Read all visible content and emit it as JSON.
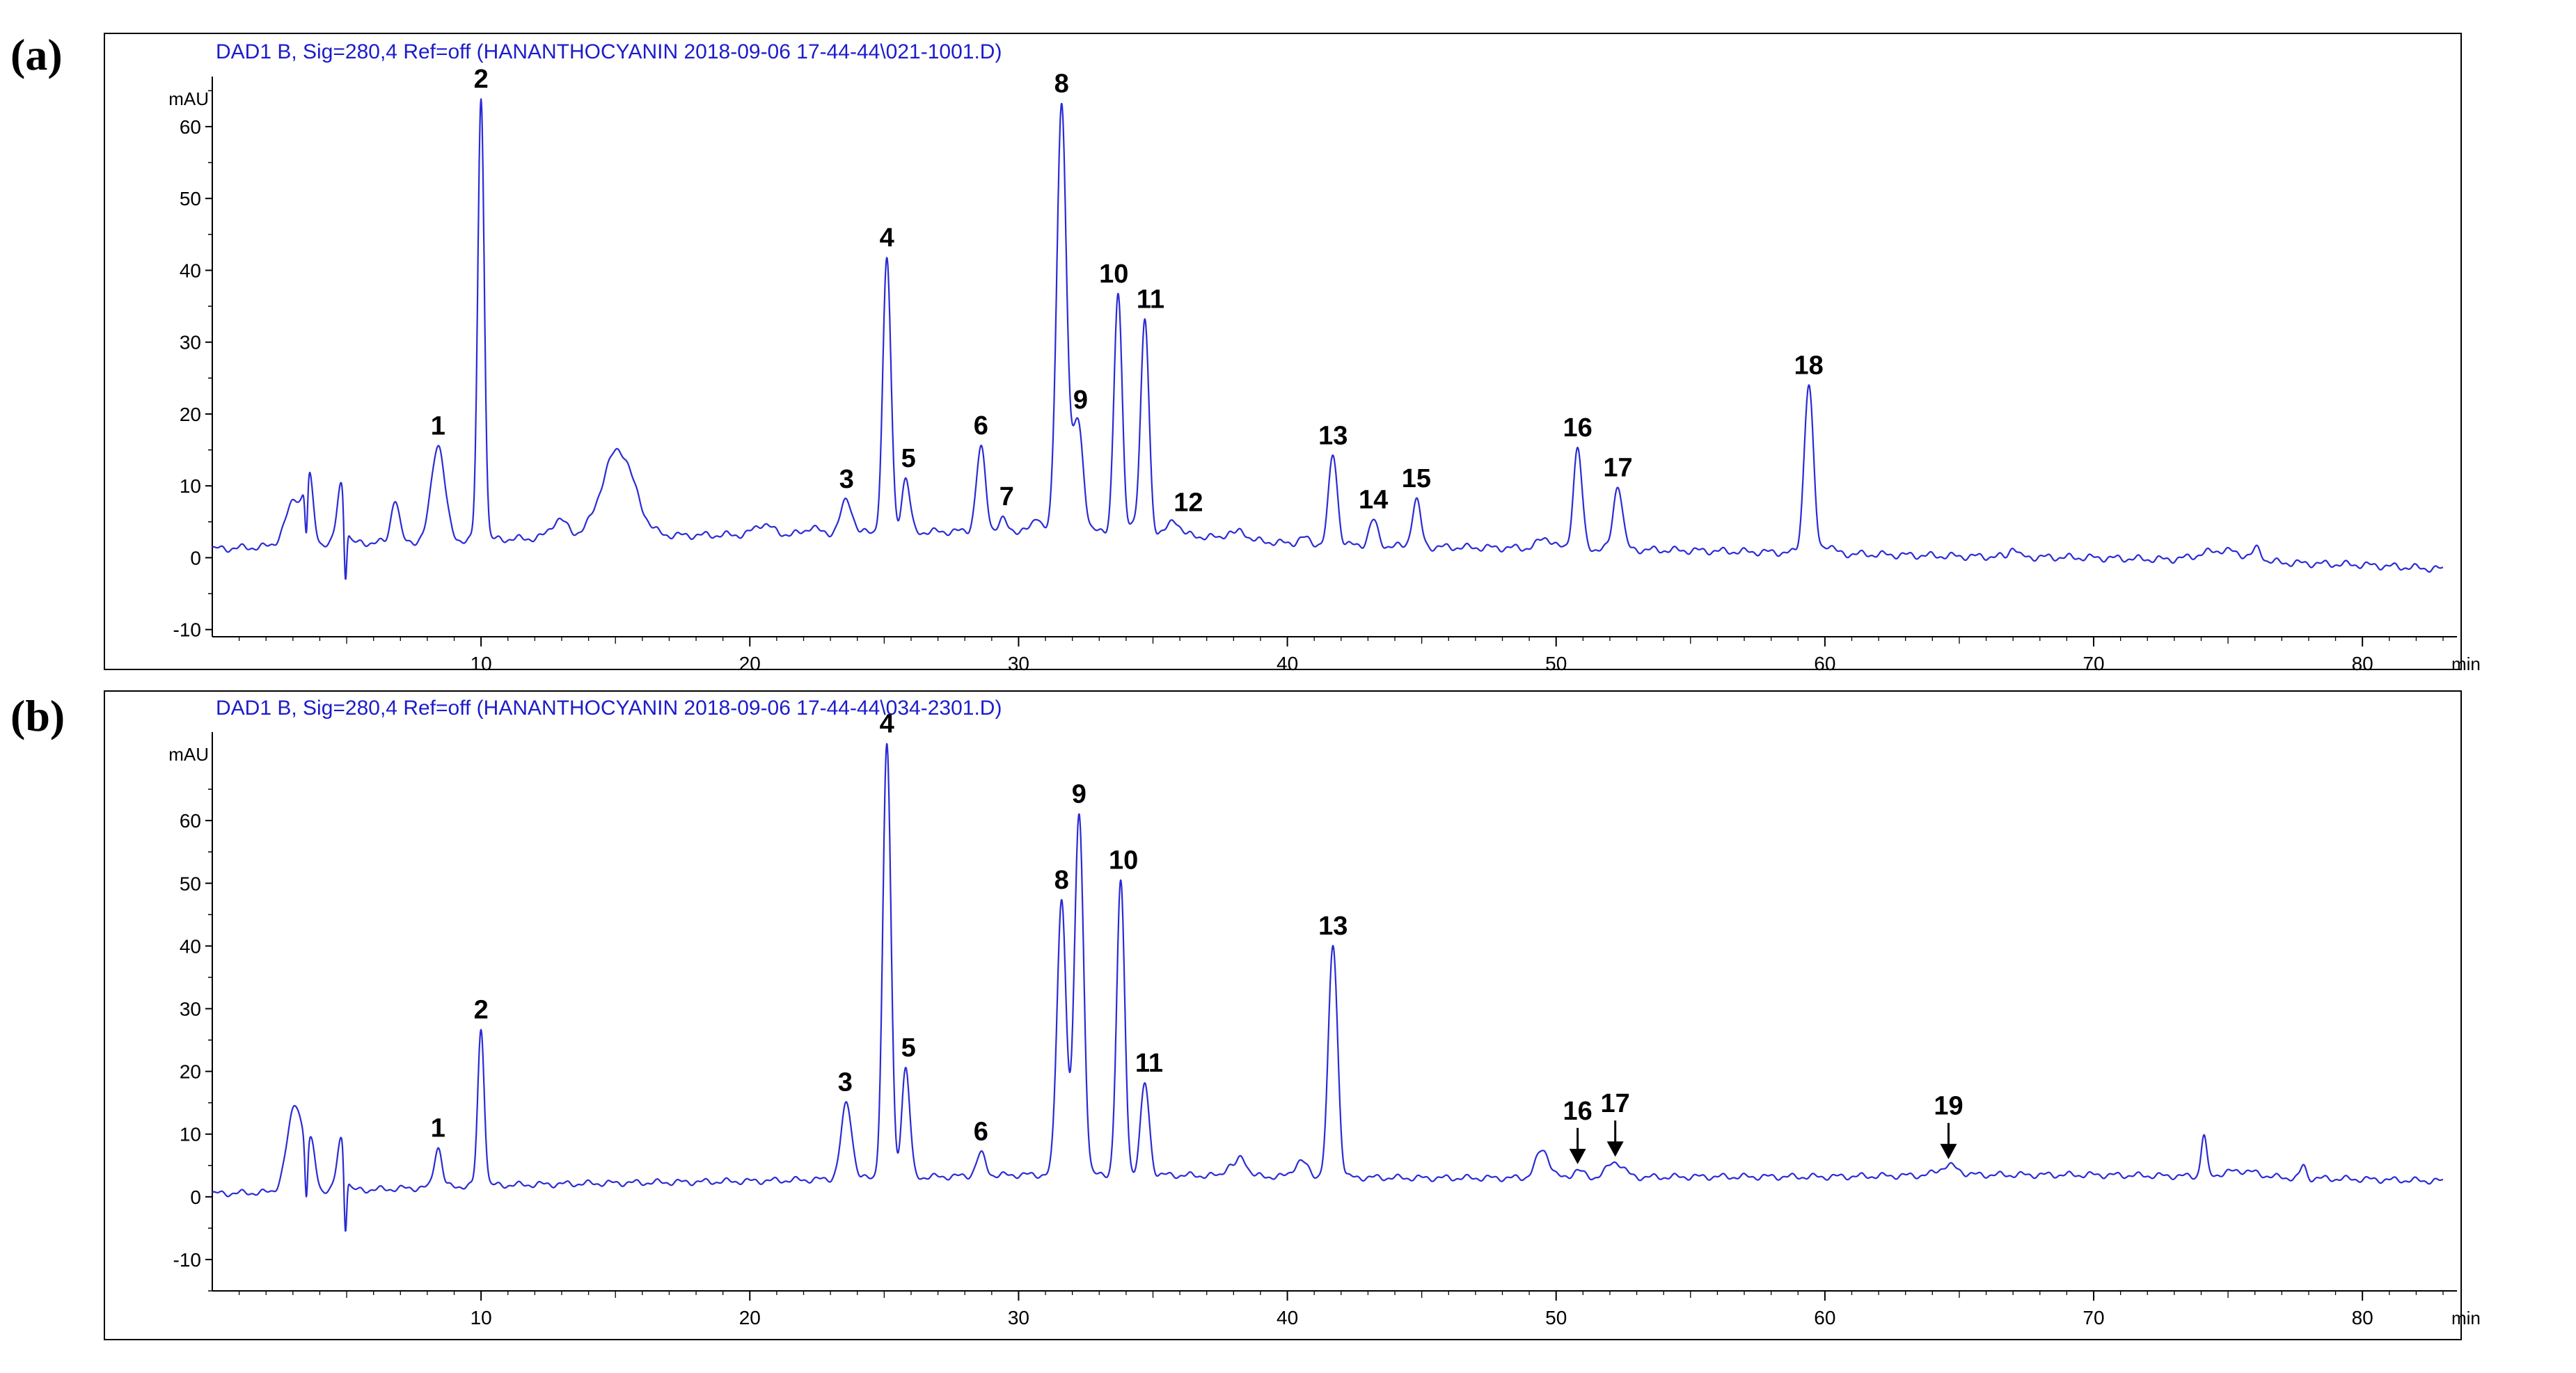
{
  "chart_data": [
    {
      "type": "line",
      "panel_label": "(a)",
      "header": "DAD1 B, Sig=280,4 Ref=off (HANANTHOCYANIN 2018-09-06 17-44-44\\021-1001.D)",
      "ylabel": "mAU",
      "xlabel": "min",
      "xlim": [
        0,
        83
      ],
      "ylim": [
        -11,
        66
      ],
      "xticks": [
        10,
        20,
        30,
        40,
        50,
        60,
        70,
        80
      ],
      "yticks": [
        -10,
        0,
        10,
        20,
        30,
        40,
        50,
        60
      ],
      "color": "#2b2bd6",
      "baseline": [
        [
          0,
          1.2
        ],
        [
          5,
          2.0
        ],
        [
          10,
          2.5
        ],
        [
          15,
          3.0
        ],
        [
          20,
          3.2
        ],
        [
          25,
          3.5
        ],
        [
          30,
          3.8
        ],
        [
          35,
          3.5
        ],
        [
          40,
          2.0
        ],
        [
          45,
          1.5
        ],
        [
          50,
          1.3
        ],
        [
          55,
          1.0
        ],
        [
          60,
          0.6
        ],
        [
          65,
          0.2
        ],
        [
          70,
          0.0
        ],
        [
          75,
          -0.5
        ],
        [
          80,
          -1.0
        ],
        [
          83,
          -1.6
        ]
      ],
      "peaks": [
        {
          "rt": 3.1,
          "height": 6.5,
          "width": 0.35,
          "label": ""
        },
        {
          "rt": 3.6,
          "height": 8.0,
          "width": 0.15,
          "label": ""
        },
        {
          "rt": 4.8,
          "height": 8.5,
          "width": 0.15,
          "label": ""
        },
        {
          "rt": 6.8,
          "height": 6.0,
          "width": 0.15,
          "label": ""
        },
        {
          "rt": 8.4,
          "height": 13.5,
          "width": 0.25,
          "label": "1"
        },
        {
          "rt": 10.0,
          "height": 61.5,
          "width": 0.12,
          "label": "2"
        },
        {
          "rt": 12.9,
          "height": 2.5,
          "width": 0.3,
          "label": ""
        },
        {
          "rt": 15.1,
          "height": 12.0,
          "width": 0.6,
          "label": ""
        },
        {
          "rt": 20.5,
          "height": 1.5,
          "width": 0.3,
          "label": ""
        },
        {
          "rt": 22.3,
          "height": 1.0,
          "width": 0.2,
          "label": ""
        },
        {
          "rt": 23.6,
          "height": 4.5,
          "width": 0.22,
          "label": "3"
        },
        {
          "rt": 25.1,
          "height": 38.0,
          "width": 0.15,
          "label": "4"
        },
        {
          "rt": 25.8,
          "height": 7.5,
          "width": 0.15,
          "label": "5"
        },
        {
          "rt": 28.6,
          "height": 11.5,
          "width": 0.17,
          "label": "6"
        },
        {
          "rt": 29.4,
          "height": 1.5,
          "width": 0.15,
          "label": "7"
        },
        {
          "rt": 30.7,
          "height": 2.0,
          "width": 0.15,
          "label": ""
        },
        {
          "rt": 31.6,
          "height": 59.5,
          "width": 0.18,
          "label": "8"
        },
        {
          "rt": 32.2,
          "height": 15.5,
          "width": 0.2,
          "label": "9"
        },
        {
          "rt": 33.7,
          "height": 33.0,
          "width": 0.15,
          "label": "10"
        },
        {
          "rt": 34.3,
          "height": 1.5,
          "width": 0.15,
          "label": ""
        },
        {
          "rt": 34.7,
          "height": 29.5,
          "width": 0.15,
          "label": "11"
        },
        {
          "rt": 35.8,
          "height": 2.0,
          "width": 0.2,
          "label": "12"
        },
        {
          "rt": 37.8,
          "height": 0.8,
          "width": 0.15,
          "label": ""
        },
        {
          "rt": 38.3,
          "height": 1.2,
          "width": 0.2,
          "label": ""
        },
        {
          "rt": 40.6,
          "height": 0.8,
          "width": 0.2,
          "label": ""
        },
        {
          "rt": 41.7,
          "height": 12.5,
          "width": 0.16,
          "label": "13"
        },
        {
          "rt": 43.2,
          "height": 3.5,
          "width": 0.16,
          "label": "14"
        },
        {
          "rt": 44.8,
          "height": 6.5,
          "width": 0.16,
          "label": "15"
        },
        {
          "rt": 49.6,
          "height": 1.5,
          "width": 0.25,
          "label": ""
        },
        {
          "rt": 50.8,
          "height": 14.0,
          "width": 0.16,
          "label": "16"
        },
        {
          "rt": 52.3,
          "height": 9.0,
          "width": 0.17,
          "label": "17"
        },
        {
          "rt": 59.4,
          "height": 23.5,
          "width": 0.17,
          "label": "18"
        },
        {
          "rt": 60.1,
          "height": 1.2,
          "width": 0.2,
          "label": ""
        },
        {
          "rt": 67.0,
          "height": 1.5,
          "width": 0.12,
          "label": ""
        },
        {
          "rt": 74.8,
          "height": 1.5,
          "width": 0.8,
          "label": ""
        },
        {
          "rt": 76.1,
          "height": 1.5,
          "width": 0.15,
          "label": ""
        }
      ],
      "dips": [
        {
          "rt": 3.5,
          "depth": -8.0,
          "width": 0.05
        },
        {
          "rt": 4.95,
          "depth": -9.5,
          "width": 0.05
        }
      ],
      "arrows": []
    },
    {
      "type": "line",
      "panel_label": "(b)",
      "header": "DAD1 B, Sig=280,4 Ref=off (HANANTHOCYANIN 2018-09-06 17-44-44\\034-2301.D)",
      "ylabel": "mAU",
      "xlabel": "min",
      "xlim": [
        0,
        83
      ],
      "ylim": [
        -15,
        73
      ],
      "xticks": [
        10,
        20,
        30,
        40,
        50,
        60,
        70,
        80
      ],
      "yticks": [
        -10,
        0,
        10,
        20,
        30,
        40,
        50,
        60
      ],
      "color": "#2b2bd6",
      "baseline": [
        [
          0,
          0.5
        ],
        [
          5,
          1.0
        ],
        [
          10,
          1.8
        ],
        [
          15,
          2.2
        ],
        [
          20,
          2.5
        ],
        [
          25,
          3.0
        ],
        [
          30,
          3.5
        ],
        [
          35,
          3.5
        ],
        [
          40,
          3.2
        ],
        [
          45,
          3.0
        ],
        [
          50,
          3.0
        ],
        [
          55,
          3.2
        ],
        [
          60,
          3.2
        ],
        [
          65,
          3.5
        ],
        [
          70,
          3.5
        ],
        [
          75,
          3.2
        ],
        [
          80,
          2.8
        ],
        [
          83,
          2.5
        ]
      ],
      "peaks": [
        {
          "rt": 3.1,
          "height": 14.0,
          "width": 0.3,
          "label": ""
        },
        {
          "rt": 3.7,
          "height": 6.0,
          "width": 0.15,
          "label": ""
        },
        {
          "rt": 4.8,
          "height": 8.5,
          "width": 0.15,
          "label": ""
        },
        {
          "rt": 8.4,
          "height": 6.5,
          "width": 0.14,
          "label": "1"
        },
        {
          "rt": 10.0,
          "height": 25.0,
          "width": 0.12,
          "label": "2"
        },
        {
          "rt": 23.6,
          "height": 12.0,
          "width": 0.2,
          "label": "3"
        },
        {
          "rt": 25.1,
          "height": 69.0,
          "width": 0.15,
          "label": "4"
        },
        {
          "rt": 25.8,
          "height": 17.5,
          "width": 0.15,
          "label": "5"
        },
        {
          "rt": 28.6,
          "height": 3.5,
          "width": 0.17,
          "label": "6"
        },
        {
          "rt": 31.6,
          "height": 44.0,
          "width": 0.17,
          "label": "8"
        },
        {
          "rt": 32.25,
          "height": 57.5,
          "width": 0.17,
          "label": "9"
        },
        {
          "rt": 33.8,
          "height": 46.5,
          "width": 0.15,
          "label": "10"
        },
        {
          "rt": 34.7,
          "height": 14.5,
          "width": 0.16,
          "label": "11"
        },
        {
          "rt": 37.8,
          "height": 1.5,
          "width": 0.15,
          "label": ""
        },
        {
          "rt": 38.3,
          "height": 3.0,
          "width": 0.2,
          "label": ""
        },
        {
          "rt": 40.5,
          "height": 2.5,
          "width": 0.25,
          "label": ""
        },
        {
          "rt": 41.7,
          "height": 37.0,
          "width": 0.17,
          "label": "13"
        },
        {
          "rt": 49.5,
          "height": 4.5,
          "width": 0.25,
          "label": ""
        },
        {
          "rt": 50.8,
          "height": 1.2,
          "width": 0.2,
          "label": "16"
        },
        {
          "rt": 52.2,
          "height": 2.5,
          "width": 0.3,
          "label": "17"
        },
        {
          "rt": 64.6,
          "height": 1.5,
          "width": 0.35,
          "label": "19"
        },
        {
          "rt": 74.1,
          "height": 6.5,
          "width": 0.1,
          "label": ""
        },
        {
          "rt": 75.5,
          "height": 1.0,
          "width": 0.6,
          "label": ""
        },
        {
          "rt": 77.8,
          "height": 2.0,
          "width": 0.1,
          "label": ""
        }
      ],
      "dips": [
        {
          "rt": 3.5,
          "depth": -9.0,
          "width": 0.05
        },
        {
          "rt": 4.95,
          "depth": -11.0,
          "width": 0.05
        }
      ],
      "arrows": [
        "16",
        "17",
        "19"
      ]
    }
  ]
}
